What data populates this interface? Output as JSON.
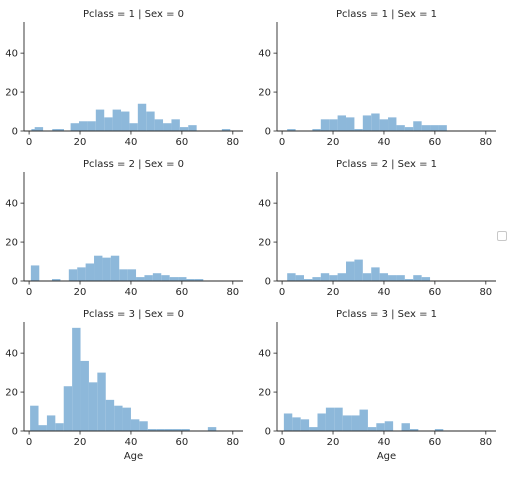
{
  "chart_data": {
    "type": "bar",
    "layout": "facet-grid",
    "row_variable": "Pclass",
    "col_variable": "Sex",
    "xlabel": "Age",
    "ylabel": "",
    "xlim": [
      -2,
      84
    ],
    "ylim": [
      0,
      56
    ],
    "xticks": [
      0,
      20,
      40,
      60,
      80
    ],
    "yticks": [
      0,
      20,
      40
    ],
    "bin_width": 3.3,
    "bar_color": "#8db8da",
    "grid": false,
    "legend": "right (empty)",
    "panels": [
      {
        "title": "Pclass = 1 | Sex = 0",
        "bins": [
          [
            0.9,
            1
          ],
          [
            2.2,
            2
          ],
          [
            9.1,
            1
          ],
          [
            10.4,
            1
          ],
          [
            16.3,
            4
          ],
          [
            19.6,
            5
          ],
          [
            22.9,
            5
          ],
          [
            26.2,
            11
          ],
          [
            29.5,
            7
          ],
          [
            32.8,
            11
          ],
          [
            36.1,
            10
          ],
          [
            39.4,
            4
          ],
          [
            42.7,
            14
          ],
          [
            46.0,
            10
          ],
          [
            49.3,
            6
          ],
          [
            52.6,
            4
          ],
          [
            55.9,
            6
          ],
          [
            59.2,
            2
          ],
          [
            62.5,
            3
          ],
          [
            65.8,
            0
          ],
          [
            69.1,
            0
          ],
          [
            72.4,
            0
          ],
          [
            75.7,
            1
          ],
          [
            79.0,
            0
          ]
        ]
      },
      {
        "title": "Pclass = 1 | Sex = 1",
        "bins": [
          [
            2.0,
            1
          ],
          [
            11.9,
            1
          ],
          [
            15.2,
            6
          ],
          [
            18.5,
            6
          ],
          [
            21.8,
            8
          ],
          [
            25.1,
            7
          ],
          [
            28.4,
            1
          ],
          [
            31.7,
            8
          ],
          [
            35.0,
            9
          ],
          [
            38.3,
            6
          ],
          [
            41.6,
            7
          ],
          [
            44.9,
            3
          ],
          [
            48.2,
            2
          ],
          [
            51.5,
            5
          ],
          [
            54.8,
            3
          ],
          [
            58.1,
            3
          ],
          [
            61.4,
            3
          ]
        ]
      },
      {
        "title": "Pclass = 2 | Sex = 0",
        "bins": [
          [
            0.7,
            8
          ],
          [
            9.0,
            1
          ],
          [
            15.6,
            6
          ],
          [
            18.9,
            7
          ],
          [
            22.2,
            9
          ],
          [
            25.5,
            13
          ],
          [
            28.8,
            12
          ],
          [
            32.1,
            13
          ],
          [
            35.4,
            6
          ],
          [
            38.7,
            6
          ],
          [
            42.0,
            2
          ],
          [
            45.3,
            3
          ],
          [
            48.6,
            4
          ],
          [
            51.9,
            3
          ],
          [
            55.2,
            2
          ],
          [
            58.5,
            2
          ],
          [
            61.8,
            1
          ],
          [
            65.1,
            1
          ]
        ]
      },
      {
        "title": "Pclass = 2 | Sex = 1",
        "bins": [
          [
            2.0,
            4
          ],
          [
            5.3,
            3
          ],
          [
            8.6,
            1
          ],
          [
            11.9,
            2
          ],
          [
            15.2,
            4
          ],
          [
            18.5,
            3
          ],
          [
            21.8,
            4
          ],
          [
            25.1,
            10
          ],
          [
            28.4,
            11
          ],
          [
            31.7,
            4
          ],
          [
            35.0,
            7
          ],
          [
            38.3,
            4
          ],
          [
            41.6,
            3
          ],
          [
            44.9,
            3
          ],
          [
            48.2,
            1
          ],
          [
            51.5,
            3
          ],
          [
            54.8,
            2
          ]
        ]
      },
      {
        "title": "Pclass = 3 | Sex = 0",
        "bins": [
          [
            0.4,
            13
          ],
          [
            3.7,
            3
          ],
          [
            7.0,
            8
          ],
          [
            10.3,
            4
          ],
          [
            13.6,
            23
          ],
          [
            16.9,
            53
          ],
          [
            20.2,
            36
          ],
          [
            23.5,
            25
          ],
          [
            26.8,
            30
          ],
          [
            30.1,
            16
          ],
          [
            33.4,
            13
          ],
          [
            36.7,
            12
          ],
          [
            40.0,
            6
          ],
          [
            43.3,
            5
          ],
          [
            46.6,
            1
          ],
          [
            49.9,
            1
          ],
          [
            53.2,
            1
          ],
          [
            56.5,
            1
          ],
          [
            59.8,
            1
          ],
          [
            70.2,
            2
          ]
        ]
      },
      {
        "title": "Pclass = 3 | Sex = 1",
        "bins": [
          [
            0.7,
            9
          ],
          [
            4.0,
            7
          ],
          [
            7.3,
            6
          ],
          [
            10.6,
            2
          ],
          [
            13.9,
            9
          ],
          [
            17.2,
            12
          ],
          [
            20.5,
            12
          ],
          [
            23.8,
            8
          ],
          [
            27.1,
            8
          ],
          [
            30.4,
            11
          ],
          [
            33.7,
            2
          ],
          [
            37.0,
            4
          ],
          [
            40.3,
            5
          ],
          [
            43.6,
            0
          ],
          [
            46.9,
            4
          ],
          [
            50.2,
            1
          ],
          [
            60.0,
            1
          ]
        ]
      }
    ]
  }
}
